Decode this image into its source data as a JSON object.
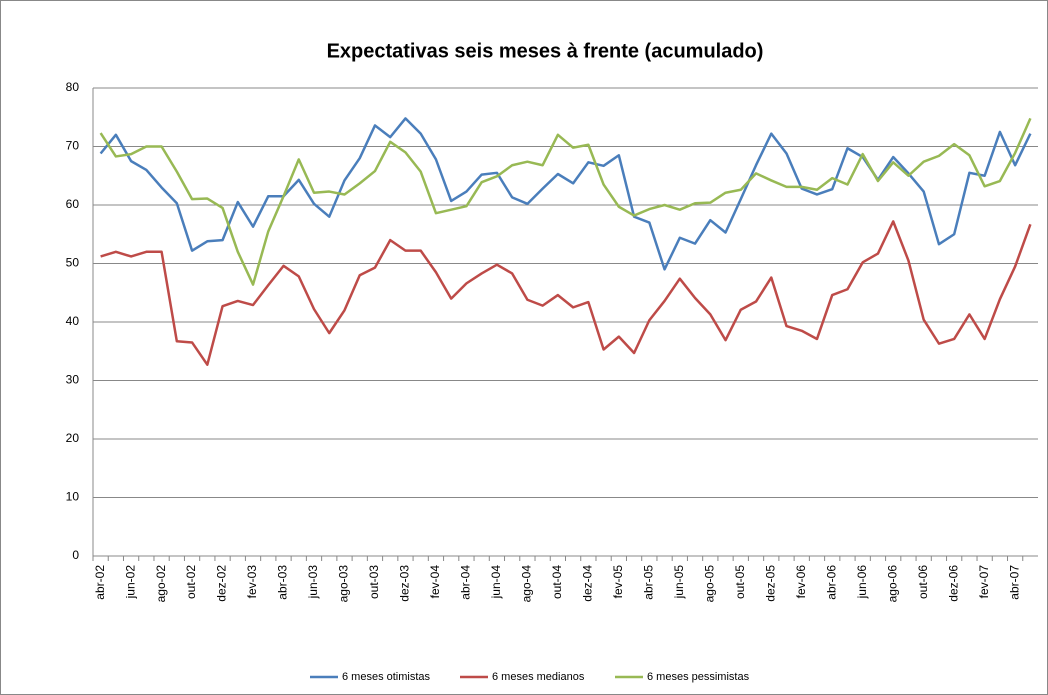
{
  "chart_data": {
    "type": "line",
    "title": "Expectativas seis meses à frente (acumulado)",
    "categories": [
      "abr-02",
      null,
      "jun-02",
      null,
      "ago-02",
      null,
      "out-02",
      null,
      "dez-02",
      null,
      "fev-03",
      null,
      "abr-03",
      null,
      "jun-03",
      null,
      "ago-03",
      null,
      "out-03",
      null,
      "dez-03",
      null,
      "fev-04",
      null,
      "abr-04",
      null,
      "jun-04",
      null,
      "ago-04",
      null,
      "out-04",
      null,
      "dez-04",
      null,
      "fev-05",
      null,
      "abr-05",
      null,
      "jun-05",
      null,
      "ago-05",
      null,
      "out-05",
      null,
      "dez-05",
      null,
      "fev-06",
      null,
      "abr-06",
      null,
      "jun-06",
      null,
      "ago-06",
      null,
      "out-06",
      null,
      "dez-06",
      null,
      "fev-07",
      null,
      "abr-07",
      null
    ],
    "series": [
      {
        "name": "6 meses otimistas",
        "color": "#4a7ebb",
        "values": [
          68.8,
          72,
          67.5,
          66,
          63,
          60.3,
          52.2,
          53.8,
          54,
          60.5,
          56.3,
          61.5,
          61.5,
          64.3,
          60.2,
          58,
          64.2,
          68,
          73.6,
          71.6,
          74.8,
          72.2,
          67.8,
          60.7,
          62.3,
          65.2,
          65.5,
          61.3,
          60.2,
          62.8,
          65.3,
          63.7,
          67.3,
          66.7,
          68.5,
          58,
          57,
          49,
          54.4,
          53.4,
          57.4,
          55.3,
          61,
          66.8,
          72.2,
          68.8,
          62.8,
          61.8,
          62.7,
          69.7,
          68.2,
          64.3,
          68.2,
          65.4,
          62.3,
          53.3,
          55,
          65.5,
          65,
          72.5,
          66.8,
          72.2
        ]
      },
      {
        "name": "6 meses medianos",
        "color": "#be4b48",
        "values": [
          51.2,
          52,
          51.2,
          52,
          52,
          36.7,
          36.5,
          32.7,
          42.7,
          43.6,
          42.9,
          46.3,
          49.6,
          47.8,
          42.2,
          38.1,
          42,
          48,
          49.3,
          54,
          52.2,
          52.2,
          48.5,
          44,
          46.6,
          48.3,
          49.8,
          48.3,
          43.8,
          42.8,
          44.6,
          42.5,
          43.4,
          35.3,
          37.5,
          34.7,
          40.3,
          43.6,
          47.4,
          44.1,
          41.3,
          36.9,
          42.1,
          43.5,
          47.6,
          39.3,
          38.5,
          37.1,
          44.6,
          45.6,
          50.2,
          51.7,
          57.2,
          50.5,
          40.4,
          36.3,
          37.1,
          41.3,
          37.1,
          43.9,
          49.5,
          56.7
        ]
      },
      {
        "name": "6 meses pessimistas",
        "color": "#98b954",
        "values": [
          72.3,
          68.3,
          68.7,
          70,
          70,
          65.7,
          61,
          61.1,
          59.5,
          52,
          46.4,
          55.5,
          61.5,
          67.8,
          62.1,
          62.3,
          61.8,
          63.7,
          65.8,
          70.8,
          69,
          65.7,
          58.6,
          59.2,
          59.8,
          63.9,
          64.9,
          66.8,
          67.4,
          66.8,
          72,
          69.8,
          70.3,
          63.5,
          59.7,
          58.2,
          59.3,
          60,
          59.2,
          60.3,
          60.4,
          62.1,
          62.6,
          65.4,
          64.2,
          63.1,
          63.1,
          62.6,
          64.6,
          63.5,
          68.7,
          64.1,
          67.3,
          65,
          67.4,
          68.4,
          70.4,
          68.5,
          63.2,
          64.1,
          68.9,
          74.8
        ]
      }
    ],
    "ylim": [
      0,
      80
    ],
    "yticks": [
      0,
      10,
      20,
      30,
      40,
      50,
      60,
      70,
      80
    ],
    "grid": true,
    "legend": "bottom"
  }
}
